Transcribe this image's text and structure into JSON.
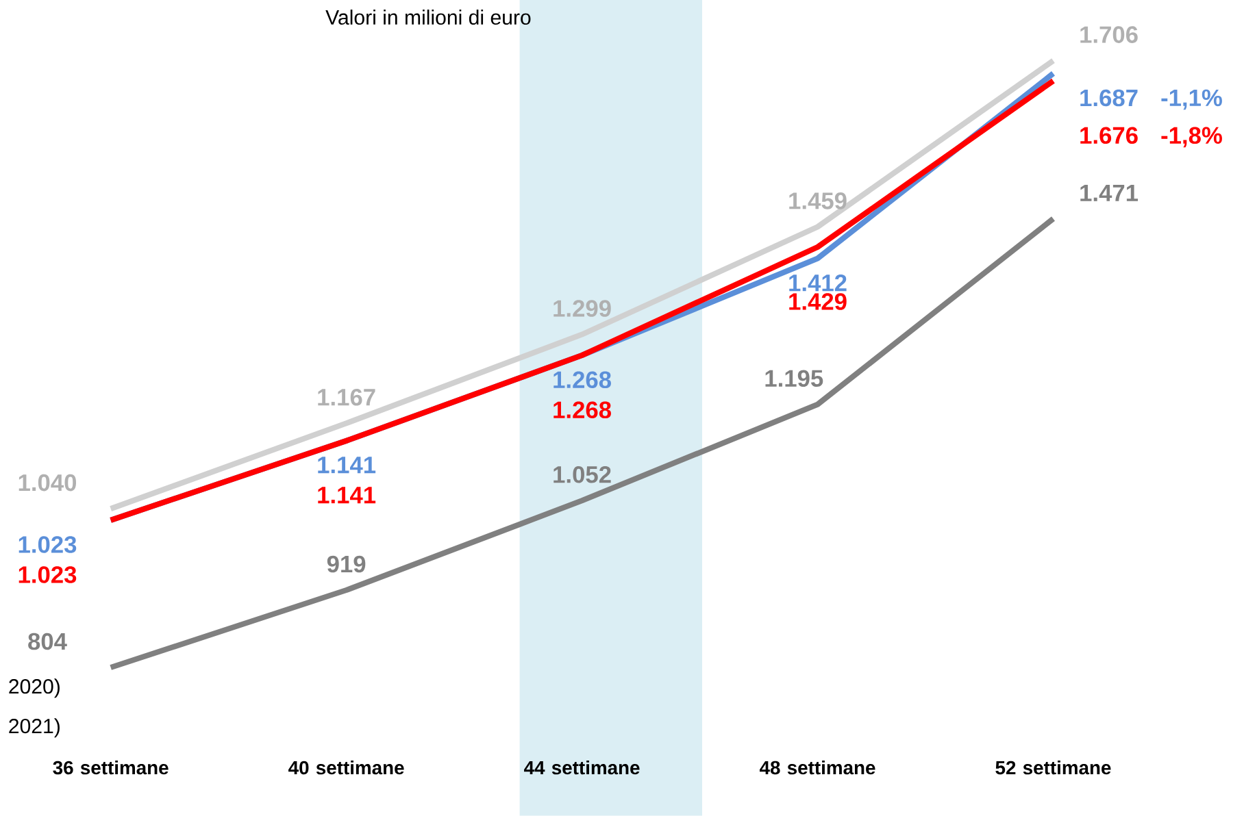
{
  "chart_data": {
    "type": "line",
    "title": "Valori in milioni di euro",
    "categories": [
      "36 settimane",
      "40 settimane",
      "44 settimane",
      "48 settimane",
      "52 settimane"
    ],
    "series": [
      {
        "color": "#d0d0d0",
        "values": [
          1040,
          1167,
          1299,
          1459,
          1706
        ],
        "value_labels": [
          "1.040",
          "1.167",
          "1.299",
          "1.459",
          "1.706"
        ]
      },
      {
        "color": "#5b8fd9",
        "values": [
          1023,
          1141,
          1268,
          1412,
          1687
        ],
        "value_labels": [
          "1.023",
          "1.141",
          "1.268",
          "1.412",
          "1.687"
        ]
      },
      {
        "color": "#ff0000",
        "values": [
          1023,
          1141,
          1268,
          1429,
          1676
        ],
        "value_labels": [
          "1.023",
          "1.141",
          "1.268",
          "1.429",
          "1.676"
        ]
      },
      {
        "color": "#808080",
        "values": [
          804,
          919,
          1052,
          1195,
          1471
        ],
        "value_labels": [
          "804",
          "919",
          "1.052",
          "1.195",
          "1.471"
        ]
      }
    ],
    "annotations": [
      "-1,1%",
      "-1,8%",
      "2020)",
      "2021)"
    ],
    "marker": "none",
    "line_style": "solid"
  }
}
